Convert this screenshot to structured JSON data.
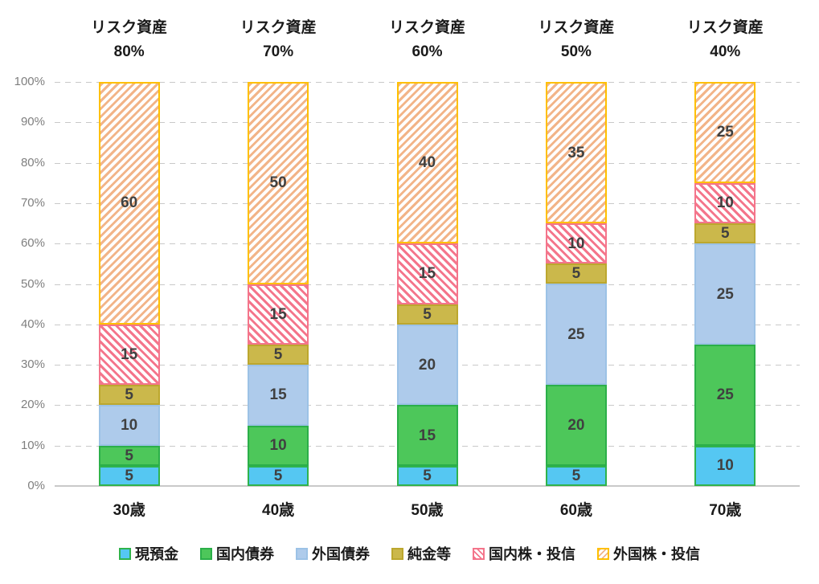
{
  "chart_data": {
    "type": "bar",
    "subtype": "stacked-100-percent",
    "title": "",
    "xlabel": "",
    "ylabel": "",
    "ylim": [
      0,
      100
    ],
    "grid": "horizontal-dashed",
    "legend_position": "bottom",
    "categories": [
      "30歳",
      "40歳",
      "50歳",
      "60歳",
      "70歳"
    ],
    "annotations": [
      {
        "line1": "リスク資産",
        "line2": "80%"
      },
      {
        "line1": "リスク資産",
        "line2": "70%"
      },
      {
        "line1": "リスク資産",
        "line2": "60%"
      },
      {
        "line1": "リスク資産",
        "line2": "50%"
      },
      {
        "line1": "リスク資産",
        "line2": "40%"
      }
    ],
    "series": [
      {
        "name": "現預金",
        "values": [
          5,
          5,
          5,
          5,
          10
        ],
        "fill": "#55C7F2",
        "border": "#2FB34C",
        "pattern": "solid"
      },
      {
        "name": "国内債券",
        "values": [
          5,
          10,
          15,
          20,
          25
        ],
        "fill": "#4DC75A",
        "border": "#2BAF49",
        "pattern": "solid"
      },
      {
        "name": "外国債券",
        "values": [
          10,
          15,
          20,
          25,
          25
        ],
        "fill": "#AECBEB",
        "border": "#9CC2E6",
        "pattern": "solid"
      },
      {
        "name": "純金等",
        "values": [
          5,
          5,
          5,
          5,
          5
        ],
        "fill": "#CBB84B",
        "border": "#BCA72E",
        "pattern": "solid"
      },
      {
        "name": "国内株・投信",
        "values": [
          15,
          15,
          15,
          10,
          10
        ],
        "fill": "#FFFFFF",
        "stripe": "#F4758B",
        "border": "#F4758B",
        "pattern": "hatch-down"
      },
      {
        "name": "外国株・投信",
        "values": [
          60,
          50,
          40,
          35,
          25
        ],
        "fill": "#FFFFFF",
        "stripe": "#F2B488",
        "border": "#FFC000",
        "pattern": "hatch-up"
      }
    ],
    "y_ticks": [
      {
        "label": "0%",
        "value": 0
      },
      {
        "label": "10%",
        "value": 10
      },
      {
        "label": "20%",
        "value": 20
      },
      {
        "label": "30%",
        "value": 30
      },
      {
        "label": "40%",
        "value": 40
      },
      {
        "label": "50%",
        "value": 50
      },
      {
        "label": "60%",
        "value": 60
      },
      {
        "label": "70%",
        "value": 70
      },
      {
        "label": "80%",
        "value": 80
      },
      {
        "label": "90%",
        "value": 90
      },
      {
        "label": "100%",
        "value": 100
      }
    ],
    "value_label_color": "#404040",
    "axis_tick_color": "#7F7F7F",
    "category_label_color": "#1A1A1A",
    "gridline_color": "#C9C9C9"
  }
}
